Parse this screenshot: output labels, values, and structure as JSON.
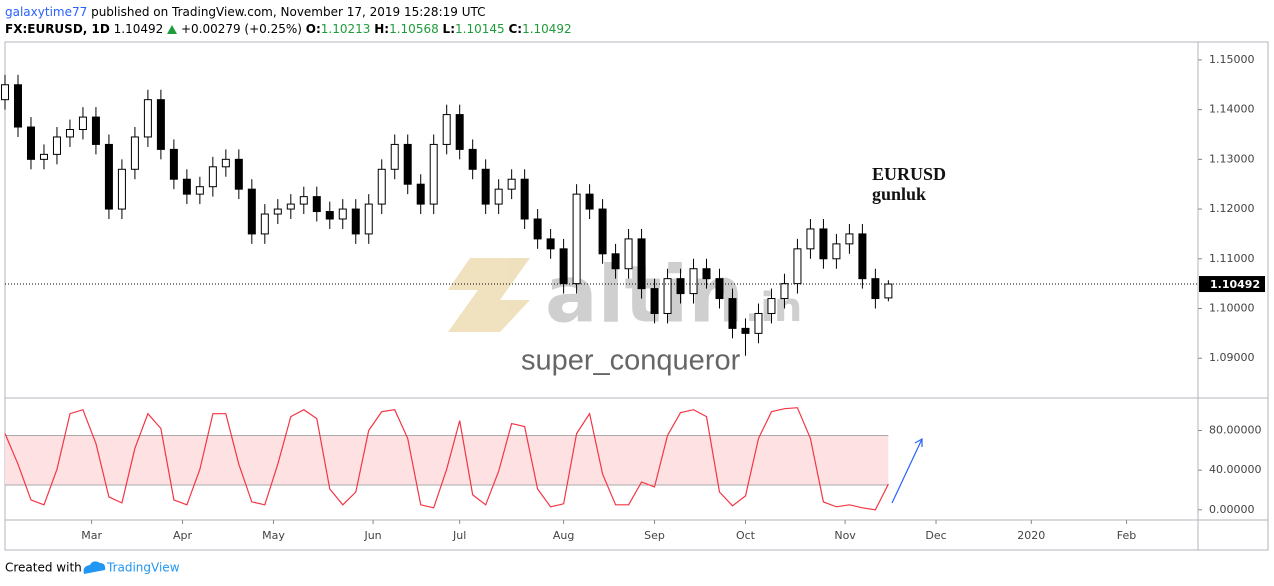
{
  "header": {
    "author": "galaxytime77",
    "published": "published on TradingView.com, November 17, 2019 15:28:19 UTC",
    "symbol": "FX:EURUSD, 1D",
    "change": "+0.00279 (+0.25%)",
    "o": "O:",
    "h": "H:",
    "l": "L:",
    "c": "C:"
  },
  "chart_data": [
    {
      "type": "candlestick",
      "annotations": [
        "EURUSD",
        "gunluk"
      ],
      "up_color": "#ffffff",
      "down_color": "#000000",
      "border_color": "#000000",
      "x": [
        0,
        3,
        6,
        9,
        12,
        15,
        18,
        21,
        24,
        27,
        30,
        33,
        36,
        39,
        42,
        45,
        48,
        51,
        54,
        57,
        60,
        63,
        66,
        69,
        72,
        75,
        78,
        81,
        84,
        87,
        90,
        93,
        96,
        99,
        102,
        105,
        108,
        111,
        114,
        117,
        120,
        123,
        126,
        129,
        132,
        135,
        138,
        141,
        144,
        147,
        150,
        153,
        156,
        159,
        162,
        165,
        168,
        171,
        174,
        177,
        180,
        183,
        186,
        189,
        192,
        195,
        198,
        201,
        204
      ],
      "ohlc": [
        [
          1.142,
          1.147,
          1.14,
          1.145
        ],
        [
          1.145,
          1.147,
          1.1345,
          1.1365
        ],
        [
          1.1365,
          1.1385,
          1.128,
          1.13
        ],
        [
          1.13,
          1.133,
          1.128,
          1.131
        ],
        [
          1.131,
          1.1365,
          1.129,
          1.1345
        ],
        [
          1.1345,
          1.138,
          1.1325,
          1.136
        ],
        [
          1.136,
          1.1405,
          1.134,
          1.1385
        ],
        [
          1.1385,
          1.1405,
          1.131,
          1.133
        ],
        [
          1.133,
          1.135,
          1.118,
          1.12
        ],
        [
          1.12,
          1.13,
          1.118,
          1.128
        ],
        [
          1.128,
          1.1365,
          1.126,
          1.1345
        ],
        [
          1.1345,
          1.144,
          1.1325,
          1.142
        ],
        [
          1.142,
          1.144,
          1.13,
          1.132
        ],
        [
          1.132,
          1.134,
          1.124,
          1.126
        ],
        [
          1.126,
          1.128,
          1.121,
          1.123
        ],
        [
          1.123,
          1.1265,
          1.121,
          1.1245
        ],
        [
          1.1245,
          1.1305,
          1.1225,
          1.1285
        ],
        [
          1.1285,
          1.132,
          1.1265,
          1.13
        ],
        [
          1.13,
          1.132,
          1.122,
          1.124
        ],
        [
          1.124,
          1.126,
          1.113,
          1.115
        ],
        [
          1.115,
          1.121,
          1.113,
          1.119
        ],
        [
          1.119,
          1.122,
          1.117,
          1.12
        ],
        [
          1.12,
          1.123,
          1.118,
          1.121
        ],
        [
          1.121,
          1.1245,
          1.119,
          1.1225
        ],
        [
          1.1225,
          1.1245,
          1.1175,
          1.1195
        ],
        [
          1.1195,
          1.1215,
          1.116,
          1.118
        ],
        [
          1.118,
          1.122,
          1.116,
          1.12
        ],
        [
          1.12,
          1.122,
          1.113,
          1.115
        ],
        [
          1.115,
          1.123,
          1.113,
          1.121
        ],
        [
          1.121,
          1.13,
          1.119,
          1.128
        ],
        [
          1.128,
          1.135,
          1.126,
          1.133
        ],
        [
          1.133,
          1.135,
          1.123,
          1.125
        ],
        [
          1.125,
          1.127,
          1.119,
          1.121
        ],
        [
          1.121,
          1.135,
          1.119,
          1.133
        ],
        [
          1.133,
          1.141,
          1.131,
          1.139
        ],
        [
          1.139,
          1.141,
          1.13,
          1.132
        ],
        [
          1.132,
          1.134,
          1.126,
          1.128
        ],
        [
          1.128,
          1.13,
          1.119,
          1.121
        ],
        [
          1.121,
          1.126,
          1.119,
          1.124
        ],
        [
          1.124,
          1.128,
          1.122,
          1.126
        ],
        [
          1.126,
          1.128,
          1.116,
          1.118
        ],
        [
          1.118,
          1.12,
          1.112,
          1.114
        ],
        [
          1.114,
          1.116,
          1.11,
          1.112
        ],
        [
          1.112,
          1.114,
          1.103,
          1.105
        ],
        [
          1.105,
          1.125,
          1.103,
          1.123
        ],
        [
          1.123,
          1.125,
          1.118,
          1.12
        ],
        [
          1.12,
          1.122,
          1.109,
          1.111
        ],
        [
          1.111,
          1.113,
          1.106,
          1.108
        ],
        [
          1.108,
          1.116,
          1.106,
          1.114
        ],
        [
          1.114,
          1.116,
          1.102,
          1.104
        ],
        [
          1.104,
          1.106,
          1.097,
          1.099
        ],
        [
          1.099,
          1.108,
          1.097,
          1.106
        ],
        [
          1.106,
          1.108,
          1.101,
          1.103
        ],
        [
          1.103,
          1.11,
          1.101,
          1.108
        ],
        [
          1.108,
          1.11,
          1.104,
          1.106
        ],
        [
          1.106,
          1.108,
          1.1,
          1.102
        ],
        [
          1.102,
          1.104,
          1.094,
          1.096
        ],
        [
          1.096,
          1.098,
          1.0905,
          1.095
        ],
        [
          1.095,
          1.101,
          1.093,
          1.099
        ],
        [
          1.099,
          1.104,
          1.097,
          1.102
        ],
        [
          1.102,
          1.107,
          1.1,
          1.105
        ],
        [
          1.105,
          1.114,
          1.103,
          1.112
        ],
        [
          1.112,
          1.118,
          1.11,
          1.116
        ],
        [
          1.116,
          1.118,
          1.108,
          1.11
        ],
        [
          1.11,
          1.115,
          1.108,
          1.113
        ],
        [
          1.113,
          1.117,
          1.111,
          1.115
        ],
        [
          1.115,
          1.117,
          1.104,
          1.106
        ],
        [
          1.106,
          1.108,
          1.1,
          1.102
        ],
        [
          1.10213,
          1.10568,
          1.10145,
          1.10492
        ]
      ],
      "xlim": [
        0,
        275.5
      ],
      "xticks": [
        {
          "value": 20,
          "label": "Mar"
        },
        {
          "value": 41,
          "label": "Apr"
        },
        {
          "value": 62,
          "label": "May"
        },
        {
          "value": 85,
          "label": "Jun"
        },
        {
          "value": 105,
          "label": "Jul"
        },
        {
          "value": 129,
          "label": "Aug"
        },
        {
          "value": 150,
          "label": "Sep"
        },
        {
          "value": 171,
          "label": "Oct"
        },
        {
          "value": 194,
          "label": "Nov"
        },
        {
          "value": 215,
          "label": "Dec"
        },
        {
          "value": 237,
          "label": "2020"
        },
        {
          "value": 259,
          "label": "Feb"
        }
      ],
      "ylim": [
        1.082,
        1.1536
      ],
      "yticks": [
        {
          "value": 1.09,
          "label": "1.09000"
        },
        {
          "value": 1.1,
          "label": "1.10000"
        },
        {
          "value": 1.11,
          "label": "1.11000"
        },
        {
          "value": 1.12,
          "label": "1.12000"
        },
        {
          "value": 1.13,
          "label": "1.13000"
        },
        {
          "value": 1.14,
          "label": "1.14000"
        },
        {
          "value": 1.15,
          "label": "1.15000"
        }
      ]
    },
    {
      "type": "line",
      "color": "#f23645",
      "band": [
        25,
        75
      ],
      "band_color": "#fde1e3",
      "x": [
        0,
        3,
        6,
        9,
        12,
        15,
        18,
        21,
        24,
        27,
        30,
        33,
        36,
        39,
        42,
        45,
        48,
        51,
        54,
        57,
        60,
        63,
        66,
        69,
        72,
        75,
        78,
        81,
        84,
        87,
        90,
        93,
        96,
        99,
        102,
        105,
        108,
        111,
        114,
        117,
        120,
        123,
        126,
        129,
        132,
        135,
        138,
        141,
        144,
        147,
        150,
        153,
        156,
        159,
        162,
        165,
        168,
        171,
        174,
        177,
        180,
        183,
        186,
        189,
        192,
        195,
        198,
        201,
        204
      ],
      "values": [
        77,
        46,
        10,
        5,
        41,
        97,
        101,
        67,
        13,
        7,
        62,
        97,
        82,
        10,
        5,
        41,
        97,
        97,
        46,
        8,
        5,
        46,
        94,
        101,
        92,
        21,
        5,
        18,
        80,
        99,
        101,
        72,
        5,
        2,
        41,
        90,
        15,
        5,
        39,
        87,
        84,
        21,
        3,
        6,
        77,
        97,
        36,
        5,
        5,
        28,
        23,
        75,
        98,
        101,
        94,
        18,
        4,
        14,
        72,
        99,
        102,
        103,
        72,
        8,
        3,
        5,
        2,
        0,
        26
      ],
      "ylim": [
        -10.3,
        112.8
      ],
      "yticks": [
        {
          "value": 0,
          "label": "0.00000"
        },
        {
          "value": 40,
          "label": "40.00000"
        },
        {
          "value": 80,
          "label": "80.00000"
        }
      ]
    }
  ],
  "watermark": {
    "brand": "altin",
    "suffix": ".in",
    "user": "super_conqueror"
  },
  "footer": {
    "created": "Created with",
    "brand": "TradingView"
  }
}
